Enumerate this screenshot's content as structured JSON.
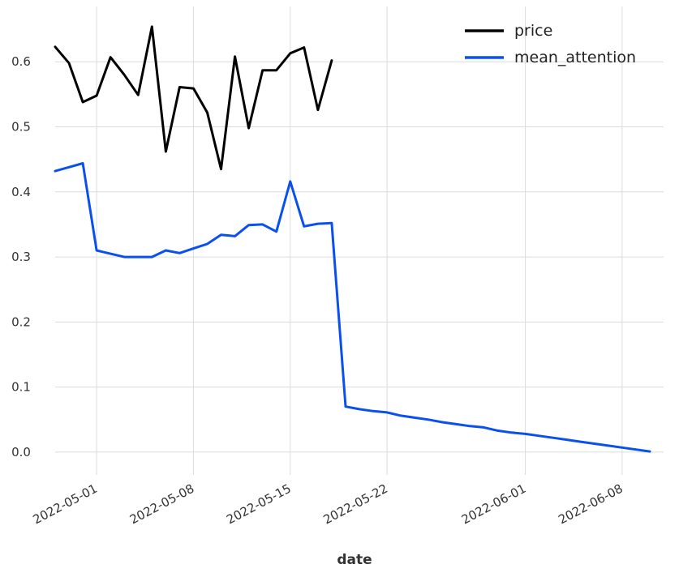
{
  "chart_data": {
    "type": "line",
    "title": "",
    "xlabel": "date",
    "ylabel": "",
    "x_domain": [
      "2022-04-28",
      "2022-06-11"
    ],
    "ylim": [
      -0.035,
      0.685
    ],
    "grid": true,
    "legend_position": "top-right",
    "x_ticks": [
      "2022-05-01",
      "2022-05-08",
      "2022-05-15",
      "2022-05-22",
      "2022-06-01",
      "2022-06-08"
    ],
    "y_ticks": [
      0.0,
      0.1,
      0.2,
      0.3,
      0.4,
      0.5,
      0.6
    ],
    "y_tick_labels": [
      "0.0",
      "0.1",
      "0.2",
      "0.3",
      "0.4",
      "0.5",
      "0.6"
    ],
    "series": [
      {
        "name": "price",
        "color": "#000000",
        "x": [
          "2022-04-28",
          "2022-04-29",
          "2022-04-30",
          "2022-05-01",
          "2022-05-02",
          "2022-05-03",
          "2022-05-04",
          "2022-05-05",
          "2022-05-06",
          "2022-05-07",
          "2022-05-08",
          "2022-05-09",
          "2022-05-10",
          "2022-05-11",
          "2022-05-12",
          "2022-05-13",
          "2022-05-14",
          "2022-05-15",
          "2022-05-16",
          "2022-05-17",
          "2022-05-18"
        ],
        "y": [
          0.623,
          0.598,
          0.538,
          0.548,
          0.607,
          0.58,
          0.549,
          0.654,
          0.462,
          0.561,
          0.559,
          0.522,
          0.435,
          0.608,
          0.498,
          0.587,
          0.587,
          0.613,
          0.622,
          0.526,
          0.602
        ]
      },
      {
        "name": "mean_attention",
        "color": "#0a50f0",
        "x": [
          "2022-04-28",
          "2022-04-29",
          "2022-04-30",
          "2022-05-01",
          "2022-05-02",
          "2022-05-03",
          "2022-05-04",
          "2022-05-05",
          "2022-05-06",
          "2022-05-07",
          "2022-05-08",
          "2022-05-09",
          "2022-05-10",
          "2022-05-11",
          "2022-05-12",
          "2022-05-13",
          "2022-05-14",
          "2022-05-15",
          "2022-05-16",
          "2022-05-17",
          "2022-05-18",
          "2022-05-19",
          "2022-05-20",
          "2022-05-21",
          "2022-05-22",
          "2022-05-23",
          "2022-05-24",
          "2022-05-25",
          "2022-05-26",
          "2022-05-27",
          "2022-05-28",
          "2022-05-29",
          "2022-05-30",
          "2022-05-31",
          "2022-06-01",
          "2022-06-02",
          "2022-06-03",
          "2022-06-04",
          "2022-06-05",
          "2022-06-06",
          "2022-06-07",
          "2022-06-08",
          "2022-06-09",
          "2022-06-10"
        ],
        "y": [
          0.432,
          0.438,
          0.444,
          0.31,
          0.305,
          0.3,
          0.3,
          0.3,
          0.31,
          0.306,
          0.313,
          0.32,
          0.334,
          0.332,
          0.349,
          0.35,
          0.339,
          0.416,
          0.347,
          0.351,
          0.352,
          0.07,
          0.066,
          0.063,
          0.061,
          0.056,
          0.053,
          0.05,
          0.046,
          0.043,
          0.04,
          0.038,
          0.033,
          0.03,
          0.028,
          0.025,
          0.022,
          0.019,
          0.016,
          0.013,
          0.01,
          0.007,
          0.004,
          0.001
        ]
      }
    ]
  }
}
